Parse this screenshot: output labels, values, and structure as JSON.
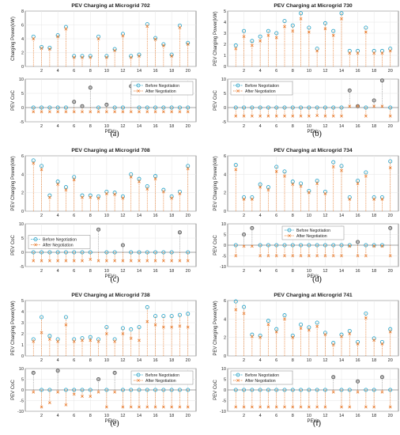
{
  "colors": {
    "before": "#1f9ec4",
    "after": "#e8792a",
    "stem": "#9a9a9a",
    "stem_power": "#e8792a",
    "grid": "#e6e6e6",
    "axis": "#444444"
  },
  "chart_data": [
    {
      "label": "(a)",
      "title": "PEV Charging at Microgrid 702",
      "xlabel": "PEVs",
      "x": [
        1,
        2,
        3,
        4,
        5,
        6,
        7,
        8,
        9,
        10,
        11,
        12,
        13,
        14,
        15,
        16,
        17,
        18,
        19,
        20
      ],
      "xticks": [
        2,
        4,
        6,
        8,
        10,
        12,
        14,
        16,
        18,
        20
      ],
      "power": {
        "type": "scatter",
        "ylabel": "Charging Power(kW)",
        "ylim": [
          0,
          8
        ],
        "yticks": [
          0,
          2,
          4,
          6,
          8
        ],
        "series": [
          {
            "values": [
              4.3,
              2.8,
              2.7,
              4.5,
              5.7,
              1.5,
              1.5,
              1.5,
              4.3,
              1.5,
              2.5,
              4.7,
              1.5,
              1.7,
              6.1,
              4.1,
              3.2,
              1.7,
              5.9,
              3.4
            ]
          },
          {
            "values": [
              4.0,
              2.6,
              2.5,
              4.3,
              5.4,
              1.3,
              1.3,
              1.3,
              4.0,
              1.3,
              2.3,
              4.4,
              1.3,
              1.5,
              5.8,
              3.9,
              3.0,
              1.5,
              5.6,
              3.2
            ]
          }
        ]
      },
      "soc": {
        "type": "scatter",
        "ylabel": "PEV CoC",
        "ylim": [
          -5,
          10
        ],
        "yticks": [
          -5,
          0,
          5,
          10
        ],
        "legend": {
          "before": "Before Negotiation",
          "after": "After Negotiation",
          "position": "top-right"
        },
        "series": [
          {
            "values": [
              0,
              0,
              0,
              0,
              0,
              2,
              0.5,
              7,
              0,
              1,
              0,
              0,
              7.5,
              0,
              0,
              0,
              0,
              0,
              0,
              0
            ]
          },
          {
            "values": [
              -1.5,
              -1.5,
              -1.5,
              -1.5,
              -1.5,
              -1.5,
              -1.5,
              -1.5,
              -1.5,
              -1.5,
              -1.5,
              -1.5,
              -1.5,
              -1.5,
              -1.5,
              -1.5,
              -1.5,
              -1.5,
              -1.5,
              -1.5
            ]
          }
        ]
      }
    },
    {
      "label": "(b)",
      "title": "PEV Charging at Microgrid 730",
      "xlabel": "PEVs",
      "x": [
        1,
        2,
        3,
        4,
        5,
        6,
        7,
        8,
        9,
        10,
        11,
        12,
        13,
        14,
        15,
        16,
        17,
        18,
        19,
        20
      ],
      "xticks": [
        2,
        4,
        6,
        8,
        10,
        12,
        14,
        16,
        18,
        20
      ],
      "power": {
        "type": "scatter",
        "ylabel": "PEV Charging Power(kW)",
        "ylim": [
          0,
          5
        ],
        "yticks": [
          0,
          1,
          2,
          3,
          4,
          5
        ],
        "series": [
          {
            "values": [
              1.9,
              3.2,
              2.3,
              2.7,
              3.2,
              3.0,
              4.1,
              3.7,
              4.8,
              3.5,
              1.6,
              3.9,
              3.2,
              4.8,
              1.4,
              1.4,
              3.5,
              1.4,
              1.4,
              1.6
            ]
          },
          {
            "values": [
              1.6,
              2.7,
              1.9,
              2.3,
              2.8,
              2.6,
              3.6,
              3.2,
              4.3,
              3.1,
              1.4,
              3.4,
              2.8,
              4.3,
              1.2,
              1.2,
              3.1,
              1.2,
              1.2,
              1.4
            ]
          }
        ]
      },
      "soc": {
        "type": "scatter",
        "ylabel": "PEV CoC",
        "ylim": [
          -5,
          10
        ],
        "yticks": [
          -5,
          0,
          5,
          10
        ],
        "legend": {
          "before": "Before Negotiation",
          "after": "After Negotiation",
          "position": "top-left"
        },
        "series": [
          {
            "values": [
              0,
              0,
              0,
              0,
              0,
              0,
              0,
              0,
              0,
              0,
              0,
              0,
              0,
              0,
              6,
              0.5,
              0,
              2.5,
              9.5,
              0
            ]
          },
          {
            "values": [
              -3,
              -3,
              -3,
              -3,
              -3,
              -3,
              -3,
              -3,
              -3,
              -3,
              -2.8,
              -3,
              -3,
              -3,
              0.5,
              0.5,
              -3,
              0.5,
              0.5,
              -3
            ]
          }
        ]
      }
    },
    {
      "label": "(c)",
      "title": "PEV Charging at Microgrid 708",
      "xlabel": "PEVs",
      "x": [
        1,
        2,
        3,
        4,
        5,
        6,
        7,
        8,
        9,
        10,
        11,
        12,
        13,
        14,
        15,
        16,
        17,
        18,
        19,
        20
      ],
      "xticks": [
        2,
        4,
        6,
        8,
        10,
        12,
        14,
        16,
        18,
        20
      ],
      "power": {
        "type": "scatter",
        "ylabel": "PEV Charging Power(kW)",
        "ylim": [
          0,
          6
        ],
        "yticks": [
          0,
          2,
          4,
          6
        ],
        "series": [
          {
            "values": [
              5.5,
              4.9,
              1.7,
              3.2,
              2.6,
              3.7,
              1.7,
              1.7,
              1.6,
              2.1,
              2.0,
              1.6,
              4.0,
              3.5,
              2.7,
              3.8,
              2.3,
              1.6,
              2.1,
              4.9
            ]
          },
          {
            "values": [
              5.2,
              4.5,
              1.5,
              2.9,
              2.3,
              3.4,
              1.5,
              1.5,
              1.4,
              1.9,
              1.8,
              1.4,
              3.7,
              3.2,
              2.4,
              3.5,
              2.1,
              1.4,
              1.9,
              4.6
            ]
          }
        ]
      },
      "soc": {
        "type": "scatter",
        "ylabel": "PEV CoC",
        "ylim": [
          -5,
          10
        ],
        "yticks": [
          -5,
          0,
          5,
          10
        ],
        "legend": {
          "before": "Before Negotiation",
          "after": "After Negotiation",
          "position": "left"
        },
        "series": [
          {
            "values": [
              0,
              0,
              0,
              0,
              0,
              0,
              0,
              0,
              8,
              0,
              0,
              2.5,
              0,
              0,
              0,
              0,
              0,
              0,
              7,
              0
            ]
          },
          {
            "values": [
              -3,
              -3,
              -3,
              -3,
              -3,
              -3,
              -3,
              -2.5,
              -3,
              -3,
              -3,
              -3,
              -3,
              -3,
              -3,
              -3,
              -3,
              -3,
              -3,
              -3
            ]
          }
        ]
      }
    },
    {
      "label": "(d)",
      "title": "PEV Charging at Microgrid 734",
      "xlabel": "PEVs",
      "x": [
        1,
        2,
        3,
        4,
        5,
        6,
        7,
        8,
        9,
        10,
        11,
        12,
        13,
        14,
        15,
        16,
        17,
        18,
        19,
        20
      ],
      "xticks": [
        2,
        4,
        6,
        8,
        10,
        12,
        14,
        16,
        18,
        20
      ],
      "power": {
        "type": "scatter",
        "ylabel": "PEV Charging Power(kW)",
        "ylim": [
          0,
          6
        ],
        "yticks": [
          0,
          2,
          4,
          6
        ],
        "series": [
          {
            "values": [
              5.0,
              1.5,
              1.5,
              2.9,
              2.6,
              4.8,
              4.3,
              3.2,
              3.0,
              2.2,
              3.3,
              2.1,
              5.3,
              4.9,
              1.5,
              3.3,
              4.2,
              1.5,
              1.5,
              5.4
            ]
          },
          {
            "values": [
              4.5,
              1.3,
              1.3,
              2.6,
              2.3,
              4.3,
              3.8,
              2.9,
              2.7,
              2.0,
              3.0,
              1.9,
              4.8,
              4.4,
              1.3,
              3.0,
              3.8,
              1.3,
              1.3,
              4.7
            ]
          }
        ]
      },
      "soc": {
        "type": "scatter",
        "ylabel": "PEV CoC",
        "ylim": [
          -10,
          10
        ],
        "yticks": [
          -10,
          -5,
          0,
          5,
          10
        ],
        "legend": {
          "before": "Before Negotiation",
          "after": "After Negotiation",
          "position": "top-center"
        },
        "series": [
          {
            "values": [
              0,
              5,
              8,
              0,
              0,
              0,
              0,
              0,
              0,
              0,
              0,
              0,
              0,
              0,
              0,
              1.5,
              0,
              0,
              0,
              8
            ]
          },
          {
            "values": [
              -5,
              -0.5,
              -0.5,
              -5,
              -5,
              -5,
              -5,
              -5,
              -5,
              -5,
              -5,
              -5,
              -5,
              -5,
              -0.5,
              -5,
              -5,
              -0.5,
              -0.5,
              -5
            ]
          }
        ]
      }
    },
    {
      "label": "(e)",
      "title": "PEV Charging at Microgrid 738",
      "xlabel": "PEVs",
      "x": [
        1,
        2,
        3,
        4,
        5,
        6,
        7,
        8,
        9,
        10,
        11,
        12,
        13,
        14,
        15,
        16,
        17,
        18,
        19,
        20
      ],
      "xticks": [
        2,
        4,
        6,
        8,
        10,
        12,
        14,
        16,
        18,
        20
      ],
      "power": {
        "type": "scatter",
        "ylabel": "PEV Charging Power(kW)",
        "ylim": [
          0,
          5
        ],
        "yticks": [
          0,
          1,
          2,
          3,
          4,
          5
        ],
        "series": [
          {
            "values": [
              1.5,
              3.5,
              1.8,
              1.5,
              3.5,
              1.5,
              1.6,
              1.7,
              1.5,
              2.6,
              1.5,
              2.5,
              2.4,
              2.6,
              4.4,
              3.6,
              3.6,
              3.6,
              3.7,
              3.8
            ]
          },
          {
            "values": [
              1.3,
              2.1,
              1.5,
              1.3,
              2.8,
              1.3,
              1.4,
              1.4,
              1.3,
              2.0,
              1.3,
              2.0,
              1.6,
              1.4,
              3.1,
              2.8,
              2.6,
              2.6,
              2.7,
              2.6
            ]
          }
        ]
      },
      "soc": {
        "type": "scatter",
        "ylabel": "PEV CoC",
        "ylim": [
          -10,
          10
        ],
        "yticks": [
          -10,
          -5,
          0,
          5,
          10
        ],
        "legend": {
          "before": "Before Negotiation",
          "after": "After Negotiation",
          "position": "top-right"
        },
        "series": [
          {
            "values": [
              8,
              0,
              0,
              9,
              0,
              0,
              0,
              0,
              5,
              0,
              8,
              0,
              0,
              0,
              0,
              0,
              0,
              0,
              0,
              0
            ]
          },
          {
            "values": [
              -1,
              -8,
              -6,
              -1,
              -7,
              -2,
              -3,
              -3,
              -1,
              -8,
              -1,
              -8,
              -8,
              -8,
              -8,
              -8,
              -8,
              -8,
              -8,
              -8
            ]
          }
        ]
      }
    },
    {
      "label": "(f)",
      "title": "PEV Charging at Microgrid 741",
      "xlabel": "PEVs",
      "x": [
        1,
        2,
        3,
        4,
        5,
        6,
        7,
        8,
        9,
        10,
        11,
        12,
        13,
        14,
        15,
        16,
        17,
        18,
        19,
        20
      ],
      "xticks": [
        2,
        4,
        6,
        8,
        10,
        12,
        14,
        16,
        18,
        20
      ],
      "power": {
        "type": "scatter",
        "ylabel": "PEV Charging Power(kW)",
        "ylim": [
          0,
          6
        ],
        "yticks": [
          0,
          2,
          4,
          6
        ],
        "series": [
          {
            "values": [
              5.9,
              5.3,
              2.3,
              2.2,
              3.8,
              2.9,
              4.4,
              2.2,
              3.4,
              3.1,
              3.6,
              2.5,
              1.4,
              2.3,
              2.7,
              1.5,
              4.6,
              1.9,
              1.5,
              2.9
            ]
          },
          {
            "values": [
              5.0,
              4.6,
              2.1,
              2.0,
              3.4,
              2.6,
              4.0,
              2.0,
              3.0,
              2.8,
              3.2,
              2.3,
              1.2,
              2.1,
              2.4,
              1.3,
              4.1,
              1.7,
              1.3,
              2.6
            ]
          }
        ]
      },
      "soc": {
        "type": "scatter",
        "ylabel": "PEV CoC",
        "ylim": [
          -10,
          10
        ],
        "yticks": [
          -10,
          -5,
          0,
          5,
          10
        ],
        "legend": {
          "before": "Before Negotiation",
          "after": "After Negotiation",
          "position": "top-left"
        },
        "series": [
          {
            "values": [
              0,
              0,
              0,
              0,
              0,
              0,
              0,
              0,
              0,
              0,
              0,
              0,
              6,
              0,
              0,
              4,
              0,
              0,
              6,
              0
            ]
          },
          {
            "values": [
              -8,
              -8,
              -8,
              -8,
              -8,
              -8,
              -8,
              -8,
              -8,
              -8,
              -8,
              -8,
              -1,
              -8,
              -8,
              -1,
              -8,
              -8,
              -1,
              -8
            ]
          }
        ]
      }
    }
  ]
}
